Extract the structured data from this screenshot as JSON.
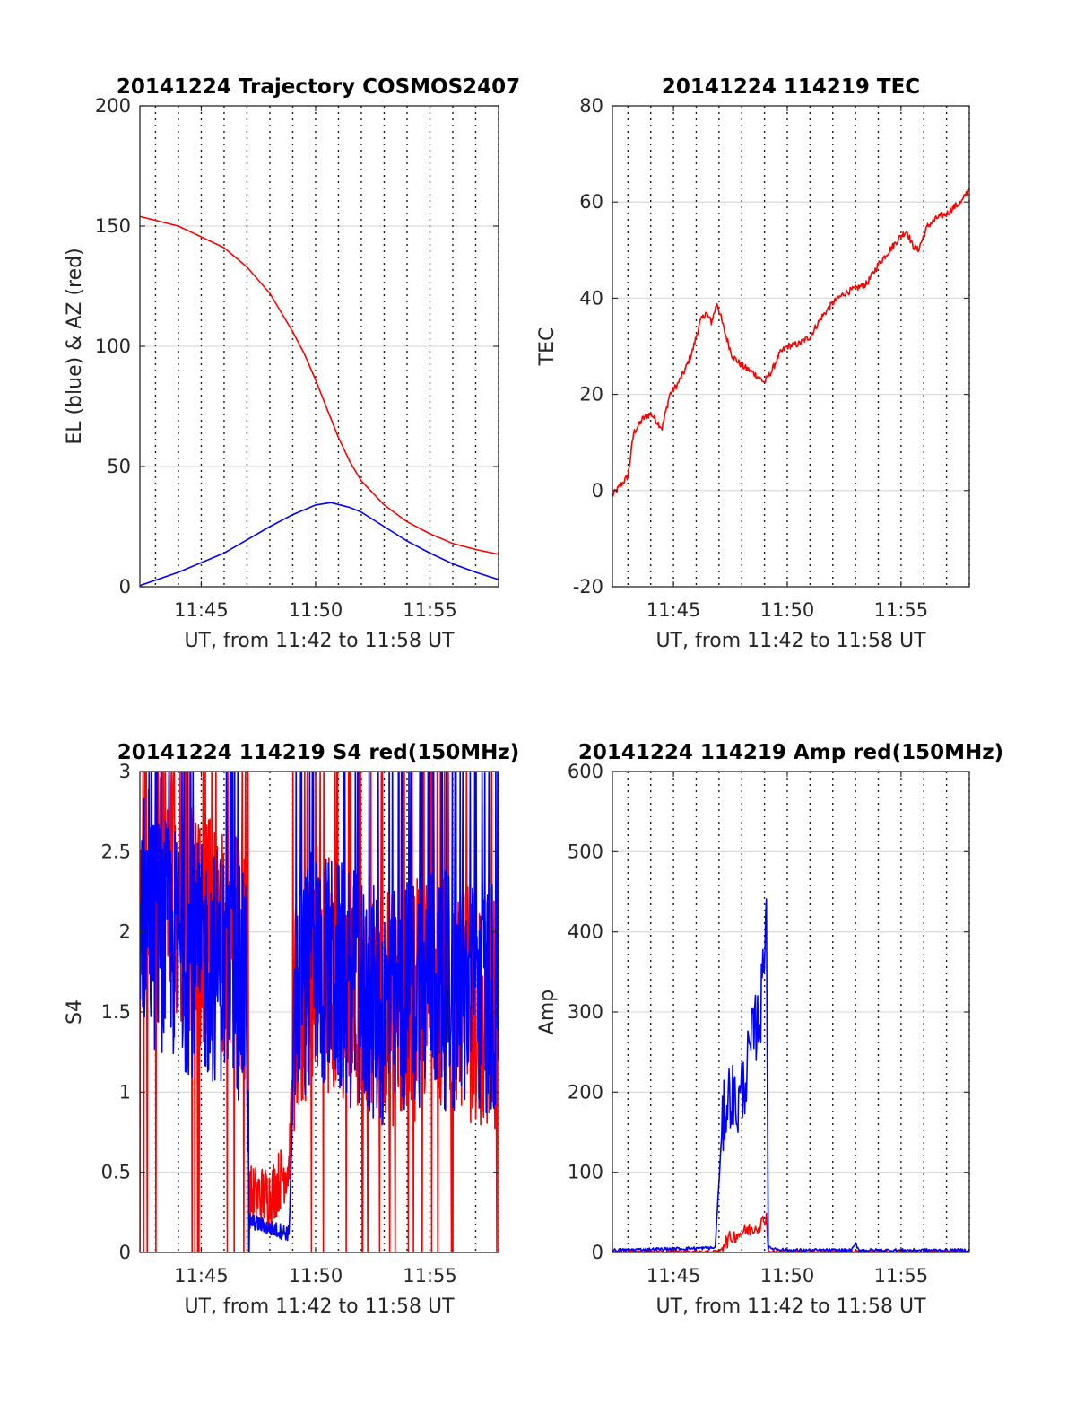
{
  "chart_data": [
    {
      "type": "line",
      "title": "20141224 Trajectory COSMOS2407",
      "xlabel": "UT, from 11:42 to 11:58 UT",
      "ylabel": "EL (blue) & AZ (red)",
      "xlim": [
        "11:42:19",
        "11:58:00"
      ],
      "ylim": [
        0,
        200
      ],
      "xticks": [
        "11:45",
        "11:50",
        "11:55"
      ],
      "yticks": [
        "0",
        "50",
        "100",
        "150",
        "200"
      ],
      "grid": "dotted vertical lines every minute, light horizontal lines at y ticks",
      "series": [
        {
          "color": "#ff0000",
          "x": [
            "11:42:19",
            "11:44:00",
            "11:46:00",
            "11:47:00",
            "11:48:00",
            "11:49:00",
            "11:49:30",
            "11:50:00",
            "11:50:30",
            "11:51:00",
            "11:51:30",
            "11:52:00",
            "11:53:00",
            "11:54:00",
            "11:55:00",
            "11:56:00",
            "11:57:00",
            "11:58:00"
          ],
          "values": [
            154,
            150,
            141,
            133,
            122,
            106,
            97,
            86,
            74,
            62,
            52,
            44,
            34,
            27,
            22,
            18,
            15.5,
            13.5
          ]
        },
        {
          "color": "#0000ff",
          "x": [
            "11:42:19",
            "11:44:00",
            "11:46:00",
            "11:48:00",
            "11:49:00",
            "11:50:00",
            "11:50:40",
            "11:51:30",
            "11:52:00",
            "11:53:00",
            "11:54:00",
            "11:55:00",
            "11:56:00",
            "11:57:00",
            "11:58:00"
          ],
          "values": [
            0.5,
            6,
            14,
            25,
            30,
            34,
            35,
            33,
            31,
            25,
            19,
            14,
            9.5,
            6,
            3
          ]
        }
      ]
    },
    {
      "type": "line",
      "title": "20141224 114219 TEC",
      "xlabel": "UT, from 11:42 to 11:58 UT",
      "ylabel": "TEC",
      "xlim": [
        "11:42:19",
        "11:58:00"
      ],
      "ylim": [
        -20,
        80
      ],
      "xticks": [
        "11:45",
        "11:50",
        "11:55"
      ],
      "yticks": [
        "-20",
        "0",
        "20",
        "40",
        "60",
        "80"
      ],
      "series": [
        {
          "color": "#ff0000",
          "x": [
            "11:42:19",
            "11:42:40",
            "11:43:00",
            "11:43:15",
            "11:43:40",
            "11:44:00",
            "11:44:20",
            "11:44:30",
            "11:44:50",
            "11:45:10",
            "11:45:30",
            "11:45:50",
            "11:46:10",
            "11:46:25",
            "11:46:40",
            "11:46:55",
            "11:47:15",
            "11:47:35",
            "11:48:00",
            "11:48:30",
            "11:49:00",
            "11:49:20",
            "11:49:40",
            "11:50:00",
            "11:50:30",
            "11:51:00",
            "11:51:30",
            "11:52:00",
            "11:52:30",
            "11:53:00",
            "11:53:30",
            "11:54:00",
            "11:54:30",
            "11:55:00",
            "11:55:15",
            "11:55:30",
            "11:55:45",
            "11:56:10",
            "11:56:40",
            "11:57:00",
            "11:57:20",
            "11:57:40",
            "11:58:00"
          ],
          "values": [
            -1,
            1,
            3,
            12,
            15,
            16,
            14,
            13,
            20,
            22,
            25,
            29,
            35,
            37,
            35,
            39,
            33,
            28,
            26,
            24.5,
            22.5,
            25,
            28.5,
            30,
            30.5,
            32,
            36,
            39,
            41,
            42,
            43,
            47,
            50,
            53,
            54,
            51,
            50,
            55,
            57,
            57.5,
            59,
            60,
            63
          ]
        }
      ]
    },
    {
      "type": "line",
      "title": "20141224 114219 S4 red(150MHz)",
      "xlabel": "UT, from 11:42 to 11:58 UT",
      "ylabel": "S4",
      "xlim": [
        "11:42:19",
        "11:58:00"
      ],
      "ylim": [
        0,
        3
      ],
      "xticks": [
        "11:45",
        "11:50",
        "11:55"
      ],
      "yticks": [
        "0",
        "0.5",
        "1",
        "1.5",
        "2",
        "2.5",
        "3"
      ],
      "series": [
        {
          "color": "#ff0000",
          "description": "highly noisy, saturating at 3 and dropping to 0; low 0.1-0.8 between 11:47 and 11:49",
          "x": [
            "11:42:19",
            "11:43:00",
            "11:44:00",
            "11:45:00",
            "11:46:00",
            "11:47:00",
            "11:47:05",
            "11:48:00",
            "11:48:50",
            "11:49:10",
            "11:50:00",
            "11:51:00",
            "11:52:00",
            "11:53:00",
            "11:54:00",
            "11:55:00",
            "11:56:00",
            "11:57:00",
            "11:58:00"
          ],
          "values": [
            2.5,
            2.3,
            2.2,
            2.0,
            2.0,
            1.8,
            0.35,
            0.35,
            0.55,
            1.5,
            1.8,
            1.7,
            1.6,
            1.5,
            1.5,
            1.7,
            1.6,
            1.5,
            1.5
          ]
        },
        {
          "color": "#0000ff",
          "description": "noisy, mostly between 1 and 3; about 0.15 between 11:47 and 11:49",
          "x": [
            "11:42:19",
            "11:43:00",
            "11:44:00",
            "11:45:00",
            "11:46:00",
            "11:47:00",
            "11:47:05",
            "11:48:00",
            "11:48:50",
            "11:49:10",
            "11:50:00",
            "11:51:00",
            "11:52:00",
            "11:53:00",
            "11:54:00",
            "11:55:00",
            "11:56:00",
            "11:57:00",
            "11:58:00"
          ],
          "values": [
            2.2,
            2.0,
            1.9,
            1.8,
            1.8,
            1.6,
            0.2,
            0.15,
            0.12,
            1.6,
            1.8,
            1.7,
            1.6,
            1.5,
            1.6,
            1.7,
            1.6,
            1.6,
            1.6
          ]
        }
      ]
    },
    {
      "type": "line",
      "title": "20141224 114219 Amp red(150MHz)",
      "xlabel": "UT, from 11:42 to 11:58 UT",
      "ylabel": "Amp",
      "xlim": [
        "11:42:19",
        "11:58:00"
      ],
      "ylim": [
        0,
        600
      ],
      "xticks": [
        "11:45",
        "11:50",
        "11:55"
      ],
      "yticks": [
        "0",
        "100",
        "200",
        "300",
        "400",
        "500",
        "600"
      ],
      "series": [
        {
          "color": "#ff0000",
          "x": [
            "11:42:19",
            "11:47:00",
            "11:47:10",
            "11:47:30",
            "11:48:00",
            "11:48:30",
            "11:48:50",
            "11:49:05",
            "11:49:10",
            "11:58:00"
          ],
          "values": [
            0,
            0,
            10,
            18,
            25,
            30,
            35,
            45,
            0,
            0
          ]
        },
        {
          "color": "#0000ff",
          "x": [
            "11:42:19",
            "11:46:50",
            "11:47:05",
            "11:47:15",
            "11:47:30",
            "11:47:50",
            "11:48:10",
            "11:48:30",
            "11:48:50",
            "11:49:05",
            "11:49:10",
            "11:50:00",
            "11:52:50",
            "11:53:00",
            "11:53:10",
            "11:58:00"
          ],
          "values": [
            2,
            5,
            130,
            180,
            200,
            180,
            220,
            270,
            300,
            440,
            5,
            2,
            2,
            10,
            2,
            2
          ]
        }
      ]
    }
  ]
}
